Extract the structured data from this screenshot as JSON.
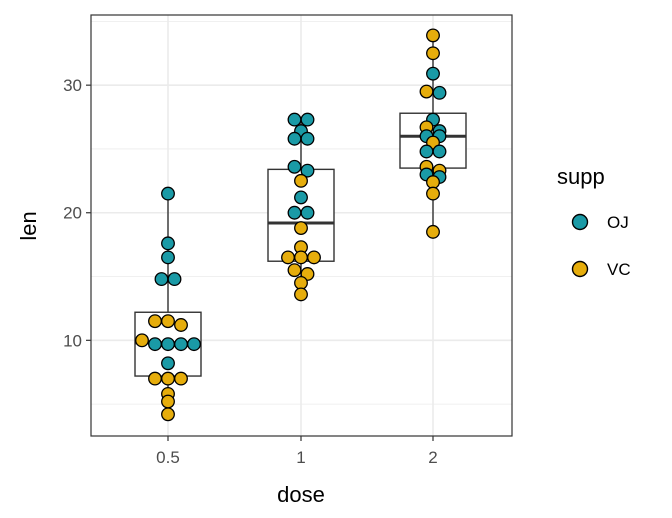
{
  "chart_data": {
    "type": "box+dotplot",
    "xlabel": "dose",
    "ylabel": "len",
    "categories": [
      "0.5",
      "1",
      "2"
    ],
    "ylim": [
      2.5,
      35.5
    ],
    "yticks": [
      10,
      20,
      30
    ],
    "grid": true,
    "colors": {
      "OJ": "#1a9aa6",
      "VC": "#e6ad0c"
    },
    "legend": {
      "title": "supp",
      "position": "right",
      "entries": [
        "OJ",
        "VC"
      ]
    },
    "boxes": [
      {
        "category": "0.5",
        "min": 4.2,
        "q1": 7.2,
        "median": 9.8,
        "q3": 12.2,
        "max": 21.5
      },
      {
        "category": "1",
        "min": 13.6,
        "q1": 16.2,
        "median": 19.2,
        "q3": 23.4,
        "max": 27.3
      },
      {
        "category": "2",
        "min": 18.5,
        "q1": 23.5,
        "median": 26.0,
        "q3": 27.8,
        "max": 33.9
      }
    ],
    "series": [
      {
        "name": "OJ",
        "points": [
          {
            "x": "0.5",
            "y": 21.5
          },
          {
            "x": "0.5",
            "y": 17.6
          },
          {
            "x": "0.5",
            "y": 16.5
          },
          {
            "x": "0.5",
            "y": 14.8
          },
          {
            "x": "0.5",
            "y": 14.8
          },
          {
            "x": "0.5",
            "y": 9.7
          },
          {
            "x": "0.5",
            "y": 9.7
          },
          {
            "x": "0.5",
            "y": 9.7
          },
          {
            "x": "0.5",
            "y": 9.7
          },
          {
            "x": "0.5",
            "y": 8.2
          },
          {
            "x": "1",
            "y": 27.3
          },
          {
            "x": "1",
            "y": 27.3
          },
          {
            "x": "1",
            "y": 26.4
          },
          {
            "x": "1",
            "y": 25.8
          },
          {
            "x": "1",
            "y": 25.8
          },
          {
            "x": "1",
            "y": 23.6
          },
          {
            "x": "1",
            "y": 23.3
          },
          {
            "x": "1",
            "y": 21.2
          },
          {
            "x": "1",
            "y": 20.0
          },
          {
            "x": "1",
            "y": 20.0
          },
          {
            "x": "2",
            "y": 30.9
          },
          {
            "x": "2",
            "y": 29.4
          },
          {
            "x": "2",
            "y": 27.3
          },
          {
            "x": "2",
            "y": 26.4
          },
          {
            "x": "2",
            "y": 26.0
          },
          {
            "x": "2",
            "y": 26.0
          },
          {
            "x": "2",
            "y": 24.8
          },
          {
            "x": "2",
            "y": 24.8
          },
          {
            "x": "2",
            "y": 23.0
          },
          {
            "x": "2",
            "y": 22.8
          }
        ]
      },
      {
        "name": "VC",
        "points": [
          {
            "x": "0.5",
            "y": 11.5
          },
          {
            "x": "0.5",
            "y": 11.5
          },
          {
            "x": "0.5",
            "y": 11.2
          },
          {
            "x": "0.5",
            "y": 10.0
          },
          {
            "x": "0.5",
            "y": 7.0
          },
          {
            "x": "0.5",
            "y": 7.0
          },
          {
            "x": "0.5",
            "y": 7.0
          },
          {
            "x": "0.5",
            "y": 5.8
          },
          {
            "x": "0.5",
            "y": 5.2
          },
          {
            "x": "0.5",
            "y": 4.2
          },
          {
            "x": "1",
            "y": 22.5
          },
          {
            "x": "1",
            "y": 18.8
          },
          {
            "x": "1",
            "y": 17.3
          },
          {
            "x": "1",
            "y": 16.5
          },
          {
            "x": "1",
            "y": 16.5
          },
          {
            "x": "1",
            "y": 16.5
          },
          {
            "x": "1",
            "y": 15.5
          },
          {
            "x": "1",
            "y": 15.2
          },
          {
            "x": "1",
            "y": 14.5
          },
          {
            "x": "1",
            "y": 13.6
          },
          {
            "x": "2",
            "y": 33.9
          },
          {
            "x": "2",
            "y": 32.5
          },
          {
            "x": "2",
            "y": 29.5
          },
          {
            "x": "2",
            "y": 26.7
          },
          {
            "x": "2",
            "y": 25.5
          },
          {
            "x": "2",
            "y": 23.6
          },
          {
            "x": "2",
            "y": 23.3
          },
          {
            "x": "2",
            "y": 22.4
          },
          {
            "x": "2",
            "y": 21.5
          },
          {
            "x": "2",
            "y": 18.5
          }
        ]
      }
    ]
  }
}
